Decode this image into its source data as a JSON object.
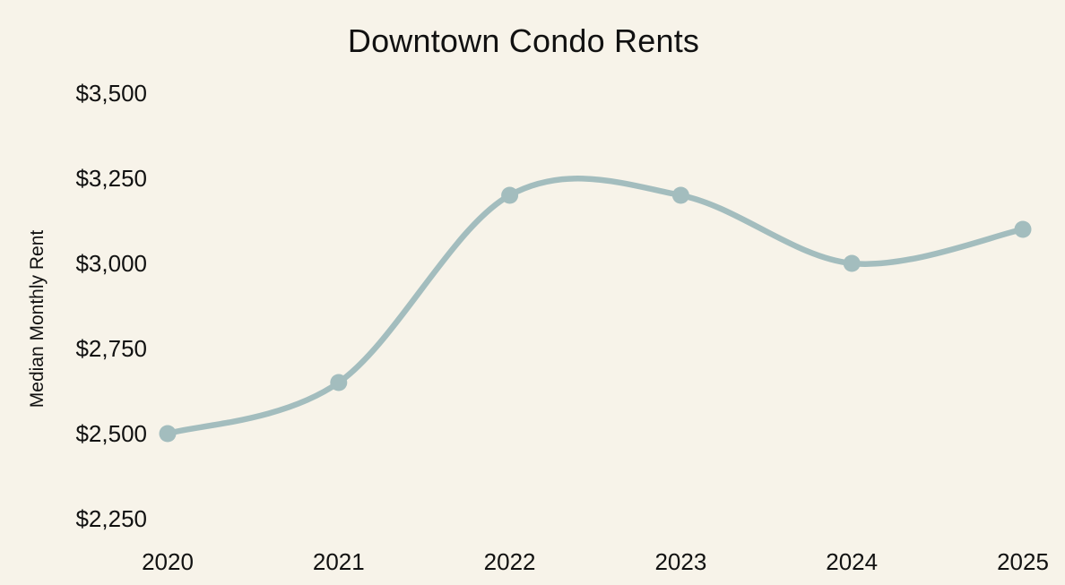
{
  "chart_data": {
    "type": "line",
    "title": "Downtown Condo Rents",
    "xlabel": "",
    "ylabel": "Median Monthly Rent",
    "categories": [
      "2020",
      "2021",
      "2022",
      "2023",
      "2024",
      "2025"
    ],
    "values": [
      2500,
      2650,
      3200,
      3200,
      3000,
      3100
    ],
    "y_ticks": [
      {
        "value": 3500,
        "label": "$3,500"
      },
      {
        "value": 3250,
        "label": "$3,250"
      },
      {
        "value": 3000,
        "label": "$3,000"
      },
      {
        "value": 2750,
        "label": "$2,750"
      },
      {
        "value": 2500,
        "label": "$2,500"
      },
      {
        "value": 2250,
        "label": "$2,250"
      }
    ],
    "ylim": [
      2250,
      3500
    ],
    "grid": false,
    "legend": "none",
    "axis_lines": false,
    "curve": "smooth",
    "colors": {
      "background": "#f7f3e9",
      "line": "#a3bdbe",
      "marker": "#a3bdbe",
      "text": "#111111"
    }
  }
}
